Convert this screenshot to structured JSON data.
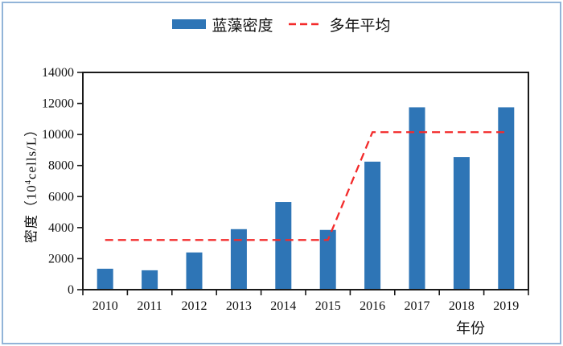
{
  "colors": {
    "bar": "#2e75b6",
    "line": "#f32b2b",
    "axis": "#1a1a1a",
    "frame": "#92b4d8"
  },
  "legend": {
    "bar_label": "蓝藻密度",
    "line_label": "多年平均"
  },
  "axis": {
    "y_label_prefix": "密度（10",
    "y_label_sup": "4",
    "y_label_suffix": "cells/L）",
    "x_label": "年份"
  },
  "chart_data": {
    "type": "bar",
    "title": "",
    "categories": [
      "2010",
      "2011",
      "2012",
      "2013",
      "2014",
      "2015",
      "2016",
      "2017",
      "2018",
      "2019"
    ],
    "series": [
      {
        "name": "蓝藻密度",
        "type": "bar",
        "values": [
          1350,
          1250,
          2400,
          3900,
          5650,
          3850,
          8250,
          11750,
          8550,
          11750
        ]
      },
      {
        "name": "多年平均",
        "type": "line",
        "dashed": true,
        "values": [
          3200,
          3200,
          3200,
          3200,
          3200,
          3200,
          10150,
          10150,
          10150,
          10150
        ]
      }
    ],
    "xlabel": "年份",
    "ylabel": "密度（10⁴cells/L）",
    "ylim": [
      0,
      14000
    ],
    "yticks": [
      0,
      2000,
      4000,
      6000,
      8000,
      10000,
      12000,
      14000
    ],
    "grid": false,
    "legend_position": "top-center"
  }
}
